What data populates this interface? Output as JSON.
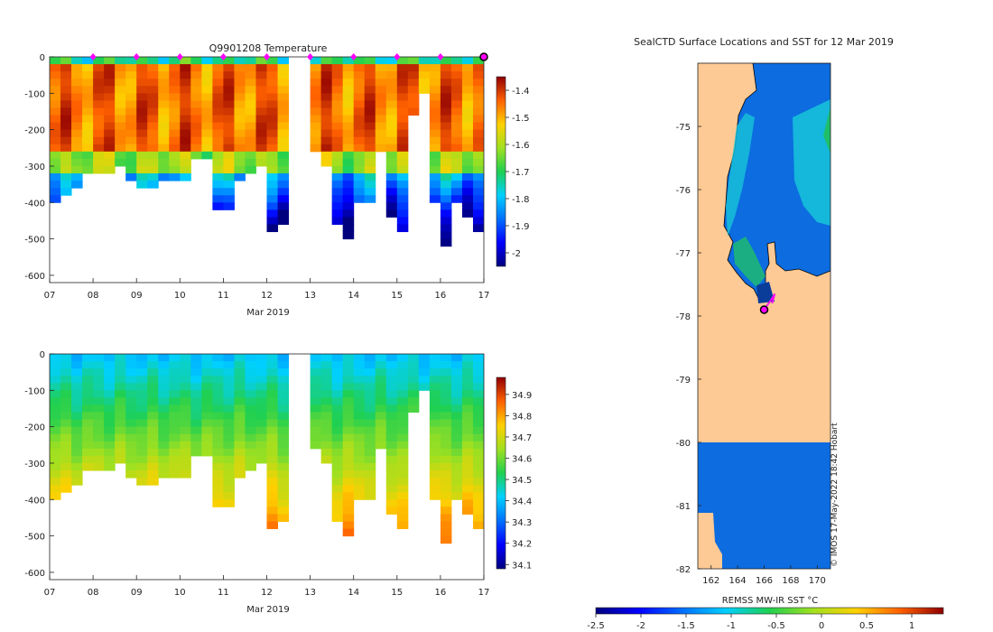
{
  "figure": {
    "watermark": "© IMOS 17-May-2022 18:42 Hobart"
  },
  "colors": {
    "land": "#fdc994",
    "sea_cold": "#0c6ce0",
    "sea_cyan": "#18c4d8",
    "sea_green": "#1fbf6a",
    "axis": "#222222"
  },
  "chart_data": [
    {
      "type": "heatmap",
      "title": "Q9901208  Temperature",
      "xlabel": "Mar 2019",
      "ylabel": "",
      "x_ticks": [
        "07",
        "08",
        "09",
        "10",
        "11",
        "12",
        "13",
        "14",
        "15",
        "16",
        "17"
      ],
      "x_range": [
        7,
        17
      ],
      "y_ticks": [
        0,
        -100,
        -200,
        -300,
        -400,
        -500,
        -600
      ],
      "ylim": [
        -620,
        0
      ],
      "colorbar": {
        "ticks": [
          -1.4,
          -1.5,
          -1.6,
          -1.7,
          -1.8,
          -1.9,
          -2
        ],
        "range": [
          -2.05,
          -1.35
        ]
      },
      "surface_markers_x": [
        8,
        9,
        10,
        11,
        12,
        13,
        14,
        15,
        16
      ],
      "last_position_x": 17,
      "profiles": [
        {
          "x": 7.0,
          "depth": 400
        },
        {
          "x": 7.25,
          "depth": 380
        },
        {
          "x": 7.5,
          "depth": 350
        },
        {
          "x": 7.75,
          "depth": 320
        },
        {
          "x": 8.0,
          "depth": 310
        },
        {
          "x": 8.25,
          "depth": 320
        },
        {
          "x": 8.5,
          "depth": 300
        },
        {
          "x": 8.75,
          "depth": 330
        },
        {
          "x": 9.0,
          "depth": 355
        },
        {
          "x": 9.25,
          "depth": 355
        },
        {
          "x": 9.5,
          "depth": 340
        },
        {
          "x": 9.75,
          "depth": 330
        },
        {
          "x": 10.0,
          "depth": 330
        },
        {
          "x": 10.25,
          "depth": 280
        },
        {
          "x": 10.5,
          "depth": 280
        },
        {
          "x": 10.75,
          "depth": 405
        },
        {
          "x": 11.0,
          "depth": 405
        },
        {
          "x": 11.25,
          "depth": 330
        },
        {
          "x": 11.5,
          "depth": 320
        },
        {
          "x": 11.75,
          "depth": 300
        },
        {
          "x": 12.0,
          "depth": 470
        },
        {
          "x": 12.25,
          "depth": 460
        },
        {
          "x": 13.0,
          "depth": 260
        },
        {
          "x": 13.25,
          "depth": 290
        },
        {
          "x": 13.5,
          "depth": 445
        },
        {
          "x": 13.75,
          "depth": 500
        },
        {
          "x": 14.0,
          "depth": 400
        },
        {
          "x": 14.25,
          "depth": 400
        },
        {
          "x": 14.5,
          "depth": 250
        },
        {
          "x": 14.75,
          "depth": 440
        },
        {
          "x": 15.0,
          "depth": 470
        },
        {
          "x": 15.25,
          "depth": 150
        },
        {
          "x": 15.5,
          "depth": 90
        },
        {
          "x": 15.75,
          "depth": 390
        },
        {
          "x": 16.0,
          "depth": 510
        },
        {
          "x": 16.25,
          "depth": 400
        },
        {
          "x": 16.5,
          "depth": 440
        },
        {
          "x": 16.75,
          "depth": 465
        },
        {
          "x": 17.0,
          "depth": 450
        }
      ]
    },
    {
      "type": "heatmap",
      "title": "",
      "xlabel": "Mar 2019",
      "ylabel": "",
      "x_ticks": [
        "07",
        "08",
        "09",
        "10",
        "11",
        "12",
        "13",
        "14",
        "15",
        "16",
        "17"
      ],
      "x_range": [
        7,
        17
      ],
      "y_ticks": [
        0,
        -100,
        -200,
        -300,
        -400,
        -500,
        -600
      ],
      "ylim": [
        -620,
        0
      ],
      "colorbar": {
        "ticks": [
          34.9,
          34.8,
          34.7,
          34.6,
          34.5,
          34.4,
          34.3,
          34.2,
          34.1
        ],
        "range": [
          34.08,
          34.98
        ]
      },
      "profiles_same_as_temperature": true
    },
    {
      "type": "heatmap",
      "title": "SealCTD Surface Locations and SST for 12 Mar 2019",
      "xlabel": "",
      "ylabel": "",
      "x_ticks": [
        "162",
        "164",
        "166",
        "168",
        "170"
      ],
      "x_range": [
        161,
        171
      ],
      "y_ticks": [
        "-75",
        "-76",
        "-77",
        "-78",
        "-79",
        "-80",
        "-81",
        "-82"
      ],
      "y_range": [
        -74,
        -82
      ],
      "colorbar": {
        "label": "REMSS MW-IR SST °C",
        "ticks": [
          "-2.5",
          "-2",
          "-1.5",
          "-1",
          "-0.5",
          "0",
          "0.5",
          "1"
        ],
        "range": [
          -2.5,
          1.35
        ]
      },
      "track": [
        {
          "lon": 166.0,
          "lat": -77.9
        },
        {
          "lon": 166.5,
          "lat": -77.75
        },
        {
          "lon": 166.8,
          "lat": -77.65
        },
        {
          "lon": 166.6,
          "lat": -77.8
        }
      ],
      "last_position": {
        "lon": 166.0,
        "lat": -77.9
      }
    }
  ]
}
